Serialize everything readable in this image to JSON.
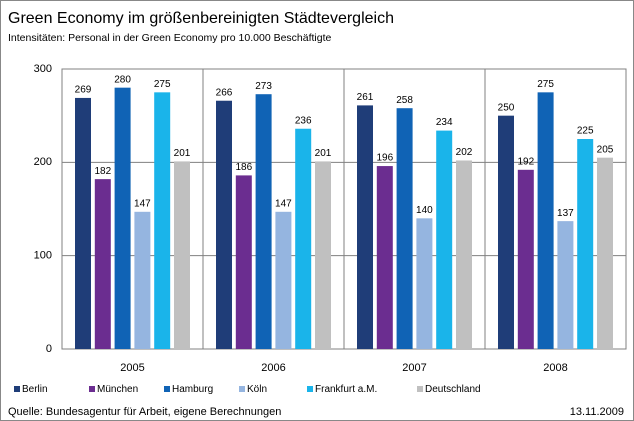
{
  "chart_data": {
    "type": "bar",
    "title": "Green Economy im größenbereinigten Städtevergleich",
    "subtitle": "Intensitäten: Personal in der Green Economy pro 10.000 Beschäftigte",
    "source": "Quelle: Bundesagentur für Arbeit, eigene Berechnungen",
    "date": "13.11.2009",
    "categories": [
      "2005",
      "2006",
      "2007",
      "2008"
    ],
    "series": [
      {
        "name": "Berlin",
        "color": "#1f3d78",
        "values": [
          269,
          266,
          261,
          250
        ]
      },
      {
        "name": "München",
        "color": "#6b2d90",
        "values": [
          182,
          186,
          196,
          192
        ]
      },
      {
        "name": "Hamburg",
        "color": "#1063b5",
        "values": [
          280,
          273,
          258,
          275
        ]
      },
      {
        "name": "Köln",
        "color": "#95b5e0",
        "values": [
          147,
          147,
          140,
          137
        ]
      },
      {
        "name": "Frankfurt a.M.",
        "color": "#1ab4ea",
        "values": [
          275,
          236,
          234,
          225
        ]
      },
      {
        "name": "Deutschland",
        "color": "#c0c0c0",
        "values": [
          201,
          201,
          202,
          205
        ]
      }
    ],
    "ylim": [
      0,
      300
    ],
    "yticks": [
      0,
      100,
      200,
      300
    ],
    "grid": true,
    "legend": "bottom"
  }
}
